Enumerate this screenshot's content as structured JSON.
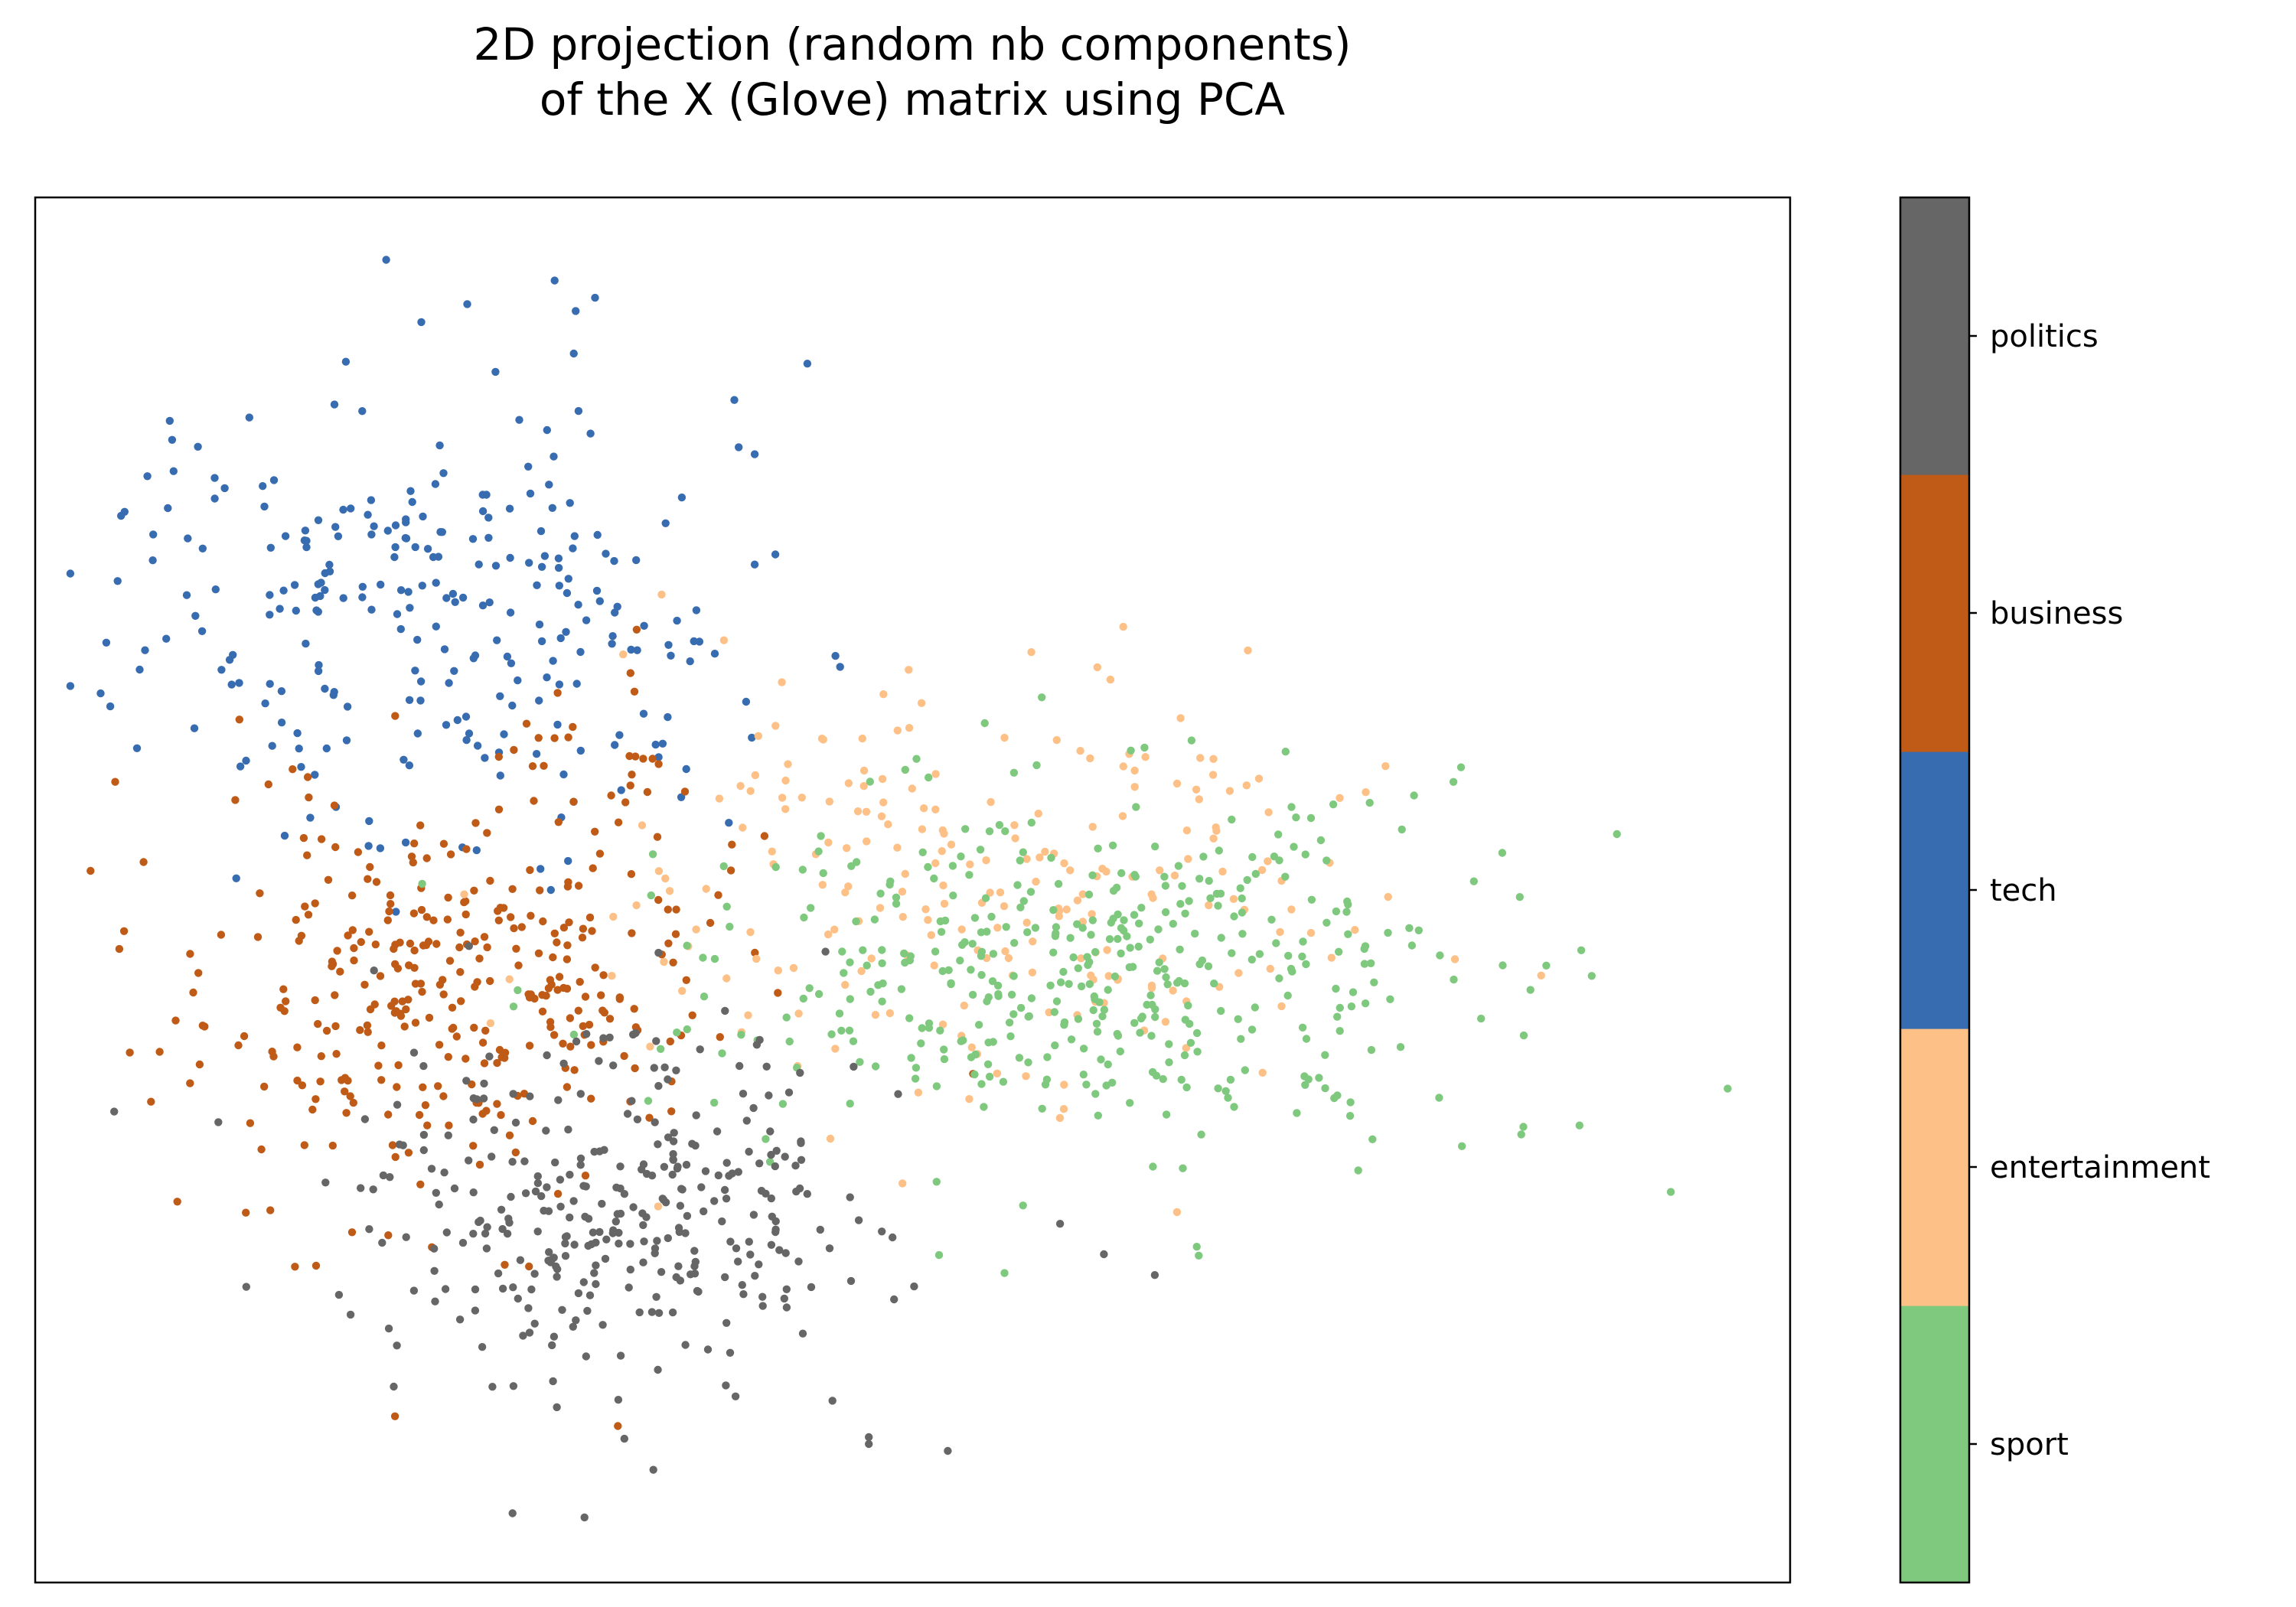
{
  "chart_data": {
    "type": "scatter",
    "title_lines": [
      "2D projection (random nb components)",
      "of the X (Glove) matrix using PCA"
    ],
    "xlabel": "",
    "ylabel": "",
    "axis_ticks": "none",
    "grid": false,
    "xlim": [
      0,
      1000
    ],
    "ylim": [
      0,
      1000
    ],
    "colorbar": {
      "placement": "right",
      "labels": [
        "sport",
        "entertainment",
        "tech",
        "business",
        "politics"
      ],
      "colors": [
        "#7fc97f",
        "#fdc086",
        "#386cb0",
        "#bf5b17",
        "#666666"
      ]
    },
    "series": [
      {
        "name": "tech",
        "color": "#386cb0",
        "clusters": [
          {
            "cx": 210,
            "cy": 700,
            "sx": 85,
            "sy": 75,
            "n": 240
          },
          {
            "cx": 300,
            "cy": 640,
            "sx": 50,
            "sy": 55,
            "n": 30
          }
        ],
        "points": [
          [
            200,
            955
          ],
          [
            296,
            940
          ],
          [
            220,
            910
          ],
          [
            308,
            918
          ],
          [
            78,
            825
          ],
          [
            440,
            880
          ],
          [
            410,
            735
          ],
          [
            456,
            669
          ]
        ]
      },
      {
        "name": "business",
        "color": "#bf5b17",
        "clusters": [
          {
            "cx": 230,
            "cy": 430,
            "sx": 75,
            "sy": 75,
            "n": 330
          },
          {
            "cx": 330,
            "cy": 590,
            "sx": 25,
            "sy": 35,
            "n": 25
          }
        ],
        "points": [
          [
            120,
            267
          ],
          [
            205,
            120
          ],
          [
            148,
            228
          ],
          [
            81,
            275
          ],
          [
            332,
            113
          ]
        ]
      },
      {
        "name": "entertainment",
        "color": "#fdc086",
        "clusters": [
          {
            "cx": 540,
            "cy": 500,
            "sx": 110,
            "sy": 75,
            "n": 230
          }
        ],
        "points": [
          [
            620,
            690
          ],
          [
            691,
            673
          ],
          [
            809,
            450
          ],
          [
            727,
            469
          ]
        ]
      },
      {
        "name": "sport",
        "color": "#7fc97f",
        "clusters": [
          {
            "cx": 600,
            "cy": 440,
            "sx": 105,
            "sy": 65,
            "n": 430
          }
        ],
        "points": [
          [
            932,
            282
          ],
          [
            880,
            330
          ],
          [
            848,
            329
          ],
          [
            813,
            315
          ],
          [
            762,
            320
          ],
          [
            800,
            350
          ],
          [
            663,
            236
          ]
        ]
      },
      {
        "name": "politics",
        "color": "#666666",
        "clusters": [
          {
            "cx": 330,
            "cy": 270,
            "sx": 75,
            "sy": 65,
            "n": 330
          }
        ],
        "points": [
          [
            45,
            340
          ],
          [
            272,
            50
          ],
          [
            313,
            47
          ],
          [
            475,
            100
          ],
          [
            475,
            105
          ],
          [
            520,
            95
          ],
          [
            584,
            259
          ],
          [
            609,
            237
          ],
          [
            638,
            222
          ]
        ]
      }
    ]
  }
}
